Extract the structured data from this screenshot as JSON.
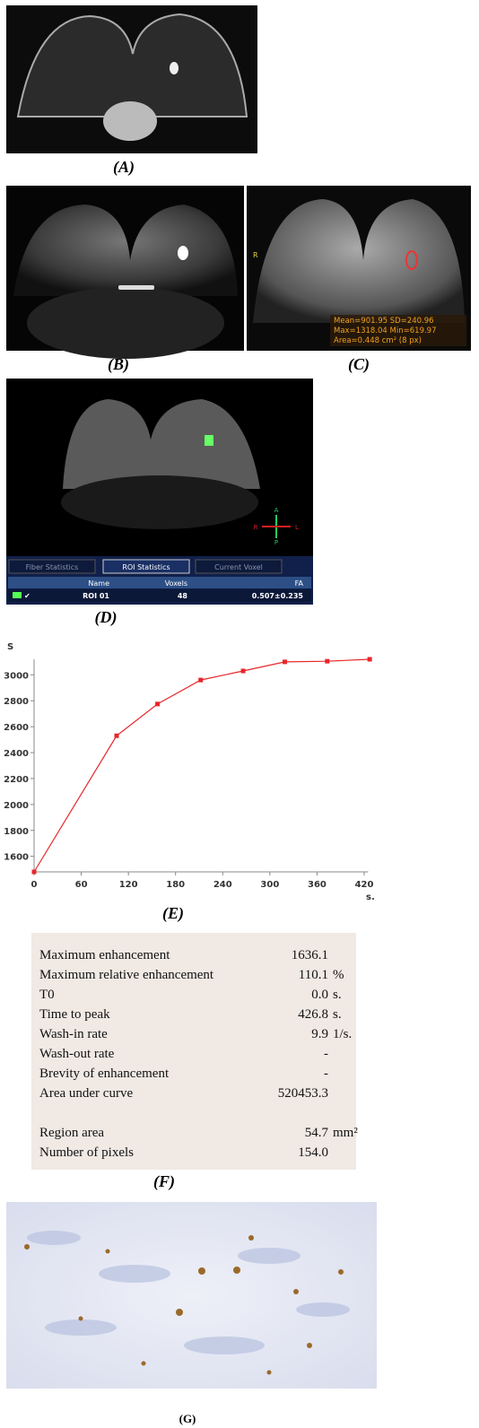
{
  "panel_labels": {
    "a": "(A)",
    "b": "(B)",
    "c": "(C)",
    "d": "(D)",
    "e": "(E)",
    "f": "(F)",
    "g": "(G)"
  },
  "panel_c": {
    "orientation": "R",
    "stats": [
      "Mean=901.95 SD=240.96",
      "Max=1318.04 Min=619.97",
      "Area=0.448 cm² (8 px)"
    ]
  },
  "panel_d": {
    "orientation": {
      "anterior": "A",
      "posterior": "P",
      "right": "R",
      "left": "L"
    },
    "tabs": [
      "Fiber Statistics",
      "ROI Statistics",
      "Current Voxel"
    ],
    "columns": [
      "Name",
      "Voxels",
      "FA"
    ],
    "row": [
      "ROI 01",
      "48",
      "0.507±0.235"
    ]
  },
  "chart_data": {
    "type": "line",
    "y_label": "S",
    "x_label": "s.",
    "color": "#e8262a",
    "x": [
      0,
      105,
      157,
      212,
      266,
      319,
      373,
      427
    ],
    "values": [
      1480,
      2530,
      2775,
      2960,
      3030,
      3100,
      3105,
      3120
    ],
    "xlim": [
      0,
      425
    ],
    "xticks": [
      0,
      60,
      120,
      180,
      240,
      300,
      360,
      420
    ],
    "ylim": [
      1480,
      3120
    ],
    "yticks": [
      1600,
      1800,
      2000,
      2200,
      2400,
      2600,
      2800,
      3000
    ]
  },
  "panel_f": {
    "groups": [
      [
        {
          "label": "Maximum enhancement",
          "value": "1636.1"
        },
        {
          "label": "Maximum relative enhancement",
          "value": "110.1",
          "unit": "%"
        },
        {
          "label": "T0",
          "value": "0.0",
          "unit": "s."
        },
        {
          "label": "Time to peak",
          "value": "426.8",
          "unit": "s."
        },
        {
          "label": "Wash-in rate",
          "value": "9.9",
          "unit": "1/s."
        },
        {
          "label": "Wash-out rate",
          "value": "-"
        },
        {
          "label": "Brevity of enhancement",
          "value": "-"
        },
        {
          "label": "Area under curve",
          "value": "520453.3"
        }
      ],
      [
        {
          "label": "Region area",
          "value": "54.7",
          "unit": "mm²"
        },
        {
          "label": "Number of pixels",
          "value": "154.0"
        }
      ]
    ]
  }
}
